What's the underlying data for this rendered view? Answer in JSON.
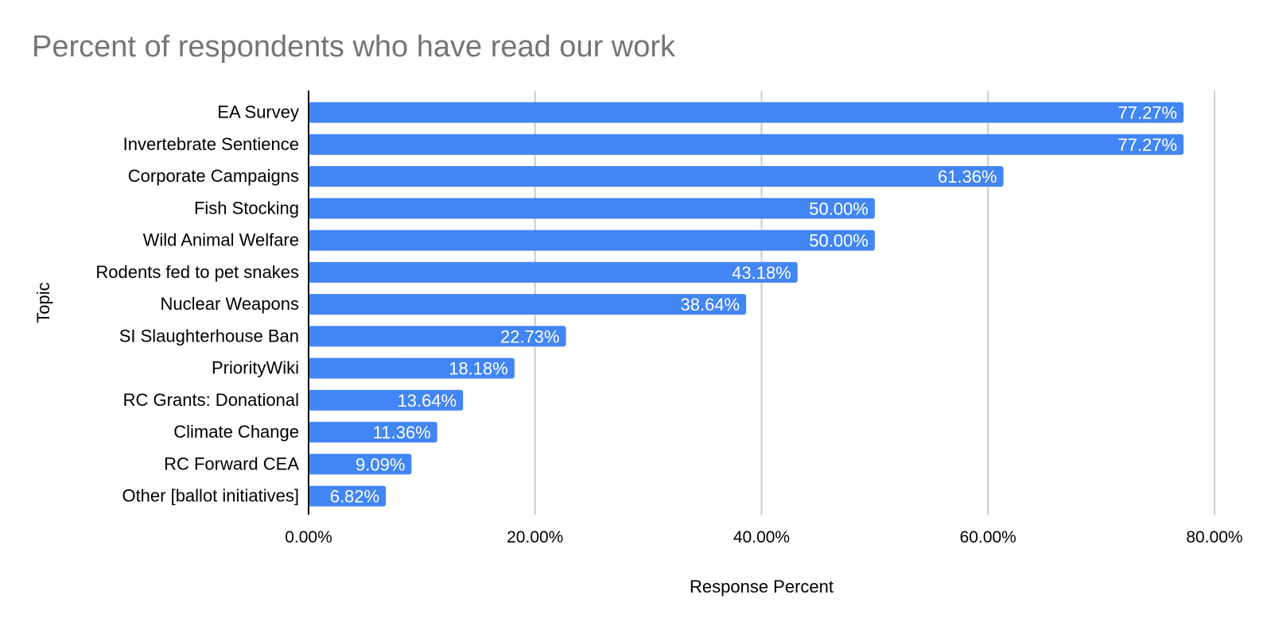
{
  "chart_data": {
    "type": "bar",
    "orientation": "horizontal",
    "title": "Percent of respondents who have read our work",
    "xlabel": "Response Percent",
    "ylabel": "Topic",
    "categories": [
      "EA Survey",
      "Invertebrate Sentience",
      "Corporate Campaigns",
      "Fish Stocking",
      "Wild Animal Welfare",
      "Rodents fed to pet snakes",
      "Nuclear Weapons",
      "SI Slaughterhouse Ban",
      "PriorityWiki",
      "RC Grants: Donational",
      "Climate Change",
      "RC Forward CEA",
      "Other [ballot initiatives]"
    ],
    "values": [
      77.27,
      77.27,
      61.36,
      50.0,
      50.0,
      43.18,
      38.64,
      22.73,
      18.18,
      13.64,
      11.36,
      9.09,
      6.82
    ],
    "data_labels": [
      "77.27%",
      "77.27%",
      "61.36%",
      "50.00%",
      "50.00%",
      "43.18%",
      "38.64%",
      "22.73%",
      "18.18%",
      "13.64%",
      "11.36%",
      "9.09%",
      "6.82%"
    ],
    "xlim": [
      0,
      80
    ],
    "xticks": [
      0,
      20,
      40,
      60,
      80
    ],
    "xtick_labels": [
      "0.00%",
      "20.00%",
      "40.00%",
      "60.00%",
      "80.00%"
    ],
    "grid": true,
    "legend": "none",
    "bar_color": "#4285f4",
    "title_color": "#757575",
    "grid_color": "#cccccc"
  }
}
